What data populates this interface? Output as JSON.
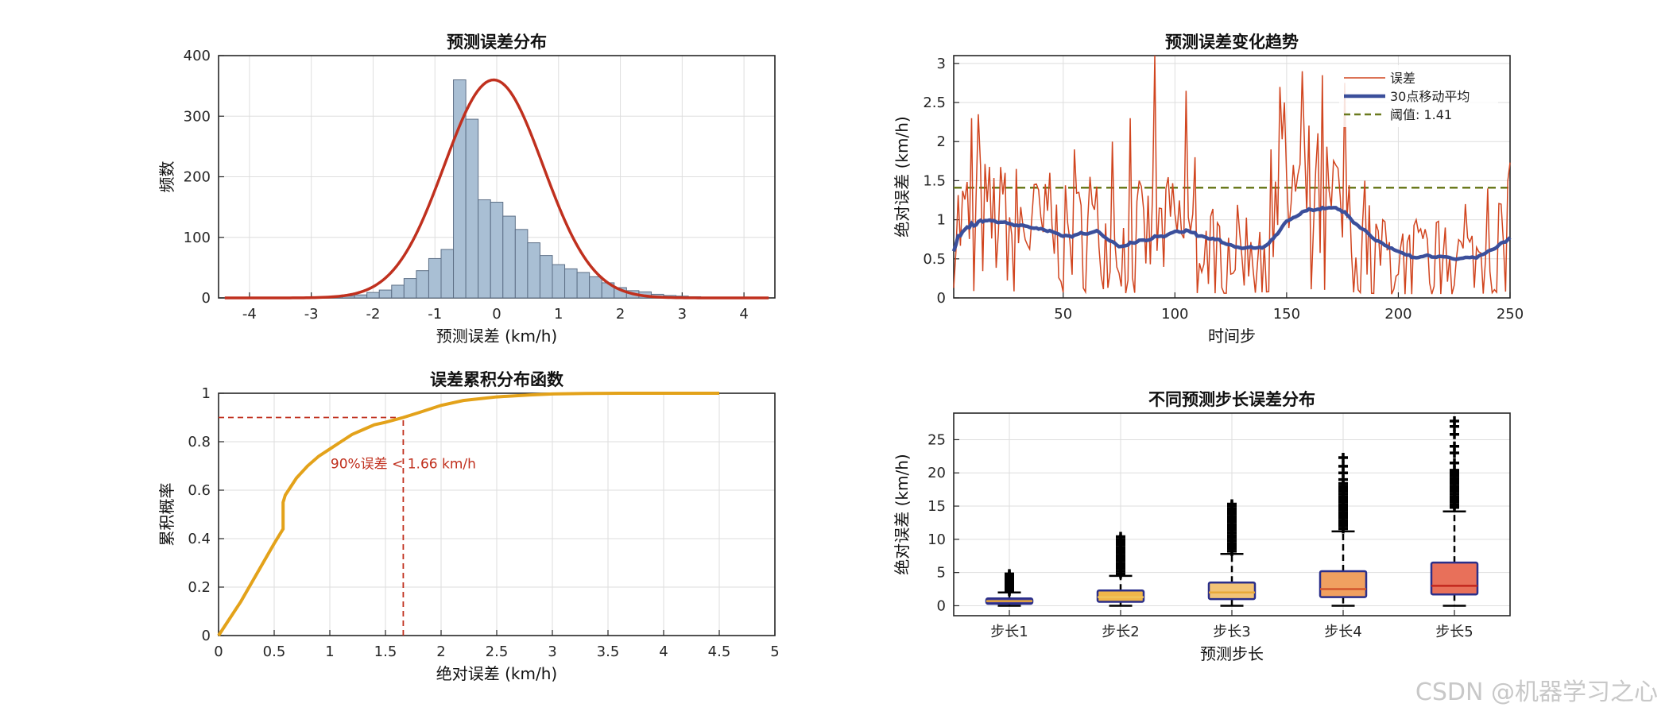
{
  "figure": {
    "background": "#ffffff",
    "watermark": "CSDN @机器学习之心"
  },
  "chart_data": [
    {
      "type": "histogram",
      "title": "预测误差分布",
      "xlabel": "预测误差 (km/h)",
      "ylabel": "频数",
      "xlim": [
        -4.5,
        4.5
      ],
      "ylim": [
        0,
        400
      ],
      "xticks": [
        -4,
        -3,
        -2,
        -1,
        0,
        1,
        2,
        3,
        4
      ],
      "yticks": [
        0,
        100,
        200,
        300,
        400
      ],
      "bin_width": 0.2,
      "bins": [
        {
          "x0": -2.7,
          "count": 2
        },
        {
          "x0": -2.5,
          "count": 3
        },
        {
          "x0": -2.3,
          "count": 5
        },
        {
          "x0": -2.1,
          "count": 9
        },
        {
          "x0": -1.9,
          "count": 13
        },
        {
          "x0": -1.7,
          "count": 21
        },
        {
          "x0": -1.5,
          "count": 32
        },
        {
          "x0": -1.3,
          "count": 45
        },
        {
          "x0": -1.1,
          "count": 65
        },
        {
          "x0": -0.9,
          "count": 80
        },
        {
          "x0": -0.7,
          "count": 360
        },
        {
          "x0": -0.5,
          "count": 295
        },
        {
          "x0": -0.3,
          "count": 162
        },
        {
          "x0": -0.1,
          "count": 158
        },
        {
          "x0": 0.1,
          "count": 135
        },
        {
          "x0": 0.3,
          "count": 113
        },
        {
          "x0": 0.5,
          "count": 91
        },
        {
          "x0": 0.7,
          "count": 70
        },
        {
          "x0": 0.9,
          "count": 55
        },
        {
          "x0": 1.1,
          "count": 48
        },
        {
          "x0": 1.3,
          "count": 42
        },
        {
          "x0": 1.5,
          "count": 35
        },
        {
          "x0": 1.7,
          "count": 25
        },
        {
          "x0": 1.9,
          "count": 17
        },
        {
          "x0": 2.1,
          "count": 12
        },
        {
          "x0": 2.3,
          "count": 10
        },
        {
          "x0": 2.5,
          "count": 6
        },
        {
          "x0": 2.7,
          "count": 4
        },
        {
          "x0": 2.9,
          "count": 3
        },
        {
          "x0": 3.1,
          "count": 2
        }
      ],
      "fit_curve": {
        "type": "normal",
        "mean": -0.05,
        "sd": 0.8,
        "peak": 360,
        "xrange": [
          -4.4,
          4.4
        ]
      },
      "colors": {
        "bar": "#a9bfd4",
        "bar_edge": "#5d6f86",
        "curve": "#c0301e"
      },
      "grid": true
    },
    {
      "type": "line",
      "title": "预测误差变化趋势",
      "xlabel": "时间步",
      "ylabel": "绝对误差 (km/h)",
      "xlim": [
        1,
        250
      ],
      "ylim": [
        0,
        3.1
      ],
      "xticks": [
        50,
        100,
        150,
        200,
        250
      ],
      "yticks": [
        0,
        0.5,
        1,
        1.5,
        2,
        2.5,
        3
      ],
      "legend": {
        "placement": "top-right"
      },
      "generator": {
        "count": 250,
        "seed": 7,
        "baseline": [
          [
            1,
            0.85
          ],
          [
            15,
            0.9
          ],
          [
            30,
            0.83
          ],
          [
            50,
            0.7
          ],
          [
            65,
            0.78
          ],
          [
            75,
            0.58
          ],
          [
            85,
            0.7
          ],
          [
            100,
            0.78
          ],
          [
            105,
            0.76
          ],
          [
            110,
            0.62
          ],
          [
            130,
            0.58
          ],
          [
            140,
            0.73
          ],
          [
            150,
            1.1
          ],
          [
            160,
            1.12
          ],
          [
            170,
            1.0
          ],
          [
            180,
            0.72
          ],
          [
            195,
            0.48
          ],
          [
            220,
            0.5
          ],
          [
            235,
            0.47
          ],
          [
            245,
            0.75
          ],
          [
            250,
            0.85
          ]
        ],
        "spikes": [
          [
            9,
            2.3
          ],
          [
            12,
            2.35
          ],
          [
            24,
            1.6
          ],
          [
            29,
            1.65
          ],
          [
            37,
            1.45
          ],
          [
            44,
            1.6
          ],
          [
            55,
            1.9
          ],
          [
            62,
            1.55
          ],
          [
            72,
            2.0
          ],
          [
            80,
            2.3
          ],
          [
            84,
            1.5
          ],
          [
            91,
            3.1
          ],
          [
            96,
            1.4
          ],
          [
            105,
            2.65
          ],
          [
            109,
            1.8
          ],
          [
            143,
            1.9
          ],
          [
            147,
            2.7
          ],
          [
            149,
            2.5
          ],
          [
            153,
            1.7
          ],
          [
            157,
            2.9
          ],
          [
            166,
            2.85
          ],
          [
            172,
            1.7
          ],
          [
            176,
            2.75
          ],
          [
            185,
            1.5
          ],
          [
            193,
            1.0
          ],
          [
            208,
            1.0
          ],
          [
            221,
            0.9
          ],
          [
            230,
            1.2
          ],
          [
            240,
            1.4
          ],
          [
            246,
            1.2
          ],
          [
            249,
            1.5
          ]
        ],
        "smooth_window": 30
      },
      "series": [
        {
          "name": "误差",
          "color": "#d1451f",
          "style": "solid"
        },
        {
          "name": "30点移动平均",
          "color": "#3b4f9b",
          "style": "solid"
        }
      ],
      "threshold": {
        "value": 1.41,
        "label": "阈值: 1.41",
        "color": "#6b7a1e",
        "style": "dashed"
      },
      "grid": true
    },
    {
      "type": "line",
      "title": "误差累积分布函数",
      "xlabel": "绝对误差 (km/h)",
      "ylabel": "累积概率",
      "xlim": [
        0,
        5
      ],
      "ylim": [
        0,
        1
      ],
      "xticks": [
        0,
        0.5,
        1,
        1.5,
        2,
        2.5,
        3,
        3.5,
        4,
        4.5,
        5
      ],
      "yticks": [
        0,
        0.2,
        0.4,
        0.6,
        0.8,
        1
      ],
      "series": [
        {
          "color": "#e3a21a",
          "x": [
            0,
            0.1,
            0.2,
            0.3,
            0.4,
            0.5,
            0.58,
            0.58,
            0.6,
            0.7,
            0.8,
            0.9,
            1.0,
            1.1,
            1.2,
            1.3,
            1.4,
            1.5,
            1.66,
            1.8,
            2.0,
            2.2,
            2.5,
            2.8,
            3.0,
            3.3,
            3.6,
            4.0,
            4.5
          ],
          "y": [
            0,
            0.07,
            0.14,
            0.22,
            0.3,
            0.38,
            0.44,
            0.55,
            0.58,
            0.65,
            0.7,
            0.74,
            0.77,
            0.8,
            0.83,
            0.85,
            0.87,
            0.88,
            0.9,
            0.92,
            0.95,
            0.97,
            0.985,
            0.993,
            0.997,
            0.999,
            1.0,
            1.0,
            1.0
          ]
        }
      ],
      "reference": {
        "x": 1.66,
        "y": 0.9,
        "label": "90%误差 < 1.66 km/h",
        "color": "#c0301e"
      },
      "grid": true
    },
    {
      "type": "boxplot",
      "title": "不同预测步长误差分布",
      "xlabel": "预测步长",
      "ylabel": "绝对误差 (km/h)",
      "ylim": [
        -1.5,
        29
      ],
      "yticks": [
        0,
        5,
        10,
        15,
        20,
        25
      ],
      "categories": [
        "步长1",
        "步长2",
        "步长3",
        "步长4",
        "步长5"
      ],
      "boxes": [
        {
          "min": 0,
          "q1": 0.3,
          "median": 0.7,
          "q3": 1.1,
          "max": 2.0,
          "outliers": [
            2.2,
            2.4,
            2.6,
            2.8,
            3.0,
            3.2,
            3.4,
            3.6,
            3.8,
            4.0,
            4.2,
            4.4,
            4.6,
            4.8
          ],
          "fill": "#4a3f9a",
          "median_color": "#e8a93a"
        },
        {
          "min": 0,
          "q1": 0.6,
          "median": 1.3,
          "q3": 2.3,
          "max": 4.5,
          "outliers": [
            4.8,
            5.2,
            5.6,
            6.0,
            6.4,
            6.8,
            7.2,
            7.6,
            8.0,
            8.4,
            8.8,
            9.2,
            9.6,
            10.0,
            10.4
          ],
          "fill": "#f0b64a",
          "median_color": "#f0c45a"
        },
        {
          "min": 0,
          "q1": 1.0,
          "median": 2.0,
          "q3": 3.5,
          "max": 7.8,
          "outliers": [
            8.2,
            8.6,
            9.0,
            9.4,
            9.8,
            10.2,
            10.6,
            11.0,
            11.4,
            11.8,
            12.2,
            12.6,
            13.0,
            13.4,
            13.8,
            14.2,
            14.6,
            15.0,
            15.3
          ],
          "fill": "#f2c377",
          "median_color": "#e8a93a"
        },
        {
          "min": 0,
          "q1": 1.3,
          "median": 2.5,
          "q3": 5.2,
          "max": 11.2,
          "outliers": [
            11.6,
            12.0,
            12.4,
            12.8,
            13.2,
            13.6,
            14.0,
            14.4,
            14.8,
            15.2,
            15.6,
            16.0,
            16.4,
            16.8,
            17.2,
            17.6,
            18.0,
            18.4,
            19.0,
            20.0,
            21.0,
            22.3
          ],
          "fill": "#f0a060",
          "median_color": "#d2552c"
        },
        {
          "min": 0,
          "q1": 1.7,
          "median": 3.0,
          "q3": 6.5,
          "max": 14.2,
          "outliers": [
            14.8,
            15.2,
            15.6,
            16.0,
            16.4,
            16.8,
            17.2,
            17.6,
            18.0,
            18.4,
            18.8,
            19.2,
            19.6,
            20.0,
            20.4,
            21.5,
            23.0,
            24.0,
            25.8,
            27.0,
            27.8
          ],
          "fill": "#e8705a",
          "median_color": "#c2261d"
        }
      ],
      "colors": {
        "box_edge": "#2b2f8a",
        "whisker": "#000000",
        "outlier": "#000000"
      },
      "grid": true
    }
  ]
}
